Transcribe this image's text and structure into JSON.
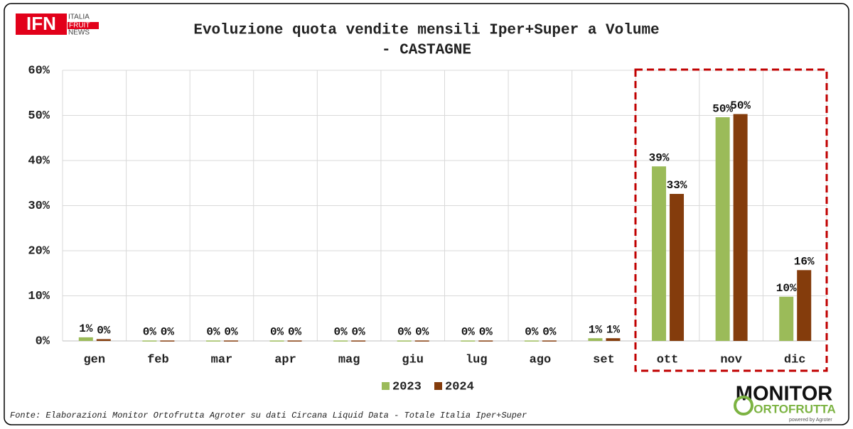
{
  "chart_data": {
    "type": "bar",
    "title": [
      "Evoluzione quota vendite mensili Iper+Super a Volume",
      "- CASTAGNE"
    ],
    "categories": [
      "gen",
      "feb",
      "mar",
      "apr",
      "mag",
      "giu",
      "lug",
      "ago",
      "set",
      "ott",
      "nov",
      "dic"
    ],
    "series": [
      {
        "name": "2023",
        "color": "#9bbb59",
        "values": [
          0.8,
          0.1,
          0.1,
          0.1,
          0.1,
          0.1,
          0.1,
          0.1,
          0.6,
          38.7,
          49.6,
          9.8
        ],
        "value_labels": [
          "1%",
          "0%",
          "0%",
          "0%",
          "0%",
          "0%",
          "0%",
          "0%",
          "1%",
          "39%",
          "50%",
          "10%"
        ]
      },
      {
        "name": "2024",
        "color": "#843c0c",
        "values": [
          0.4,
          0.1,
          0.1,
          0.1,
          0.1,
          0.1,
          0.1,
          0.1,
          0.6,
          32.6,
          50.3,
          15.7
        ],
        "value_labels": [
          "0%",
          "0%",
          "0%",
          "0%",
          "0%",
          "0%",
          "0%",
          "0%",
          "1%",
          "33%",
          "50%",
          "16%"
        ]
      }
    ],
    "ylim": [
      0,
      60
    ],
    "yticks": [
      {
        "value": 0,
        "label": "0%"
      },
      {
        "value": 10,
        "label": "10%"
      },
      {
        "value": 20,
        "label": "20%"
      },
      {
        "value": 30,
        "label": "30%"
      },
      {
        "value": 40,
        "label": "40%"
      },
      {
        "value": 50,
        "label": "50%"
      },
      {
        "value": 60,
        "label": "60%"
      }
    ],
    "grid": true,
    "legend": "bottom",
    "source": "Fonte: Elaborazioni Monitor Ortofrutta Agroter su dati Circana Liquid Data - Totale Italia Iper+Super"
  },
  "logos": {
    "ifn": {
      "mark": "IFN",
      "lines": [
        "ITALIA",
        "FRUIT",
        "NEWS"
      ]
    },
    "monitor": {
      "top": "MONITOR",
      "bottom": "ORTOFRUTTA",
      "credit": "powered by Agroter"
    }
  }
}
